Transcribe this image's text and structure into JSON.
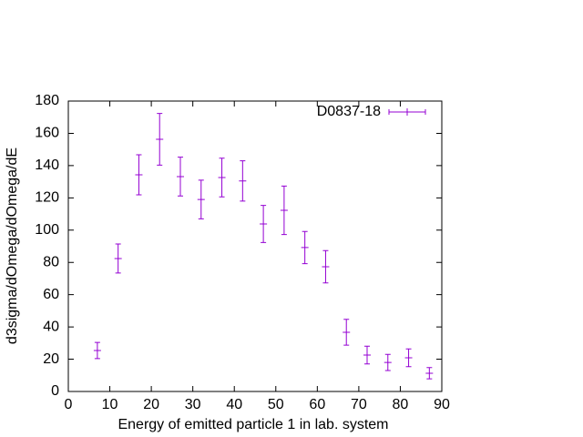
{
  "chart_data": {
    "type": "errorbar",
    "xlabel": "Energy of emitted particle 1 in lab. system",
    "ylabel": "d3sigma/dOmega/dOmega/dE",
    "x": [
      7,
      12,
      17,
      22,
      27,
      32,
      37,
      42,
      47,
      52,
      57,
      62,
      67,
      72,
      77,
      82,
      87
    ],
    "series": [
      {
        "name": "D0837-18",
        "color": "#9400d3",
        "values": [
          25.4,
          82.4,
          134.3,
          156.3,
          133.2,
          119,
          132.6,
          130.5,
          103.8,
          112.3,
          89.2,
          77.3,
          36.7,
          22.6,
          18,
          20.9,
          11.3
        ],
        "errors": [
          5,
          9,
          12.4,
          16,
          12,
          12,
          12,
          12.5,
          11.5,
          15,
          10,
          10,
          8,
          5.5,
          5,
          5.5,
          3.5
        ]
      }
    ],
    "xlim": [
      0,
      90
    ],
    "xticks": [
      0,
      10,
      20,
      30,
      40,
      50,
      60,
      70,
      80,
      90
    ],
    "ylim": [
      0,
      180
    ],
    "yticks": [
      0,
      20,
      40,
      60,
      80,
      100,
      120,
      140,
      160,
      180
    ],
    "legend": "top-right"
  }
}
